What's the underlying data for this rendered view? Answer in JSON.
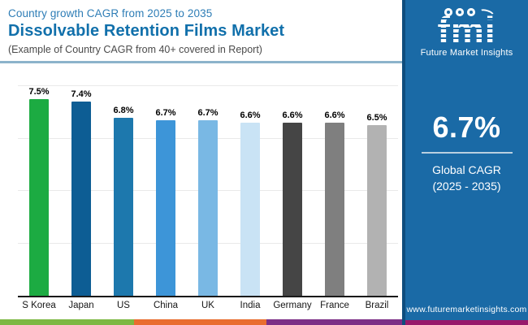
{
  "header": {
    "kicker": "Country growth CAGR from 2025 to 2035",
    "title": "Dissolvable Retention Films Market",
    "caption": "(Example of Country CAGR from 40+ covered in Report)"
  },
  "chart_data": {
    "type": "bar",
    "categories": [
      "S Korea",
      "Japan",
      "US",
      "China",
      "UK",
      "India",
      "Germany",
      "France",
      "Brazil"
    ],
    "values": [
      7.5,
      7.4,
      6.8,
      6.7,
      6.7,
      6.6,
      6.6,
      6.6,
      6.5
    ],
    "value_labels": [
      "7.5%",
      "7.4%",
      "6.8%",
      "6.7%",
      "6.7%",
      "6.6%",
      "6.6%",
      "6.6%",
      "6.5%"
    ],
    "bar_colors": [
      "#1cab42",
      "#0d5d94",
      "#1d78ad",
      "#3d95d8",
      "#79b8e4",
      "#c9e3f5",
      "#454545",
      "#7f7f7f",
      "#b2b2b2"
    ],
    "title": "Country growth CAGR from 2025 to 2035",
    "xlabel": "",
    "ylabel": "",
    "ylim": [
      0,
      8
    ],
    "gridline_values": [
      2,
      4,
      6,
      8
    ],
    "grid": "horizontal-light",
    "legend": "none"
  },
  "sidebar": {
    "logo": {
      "brand": "fmi",
      "brand_caption": "Future Market Insights"
    },
    "stat": {
      "value": "6.7%",
      "label_line1": "Global CAGR",
      "label_line2": "(2025 - 2035)"
    },
    "website": "www.futuremarketinsights.com",
    "colors": {
      "background": "#1a6aa6",
      "edge": "#0f4d7d",
      "bottom_strip": "#97196b"
    }
  },
  "footer": {
    "strip_colors": [
      "#7db843",
      "#e96d2f",
      "#7c2e86"
    ]
  },
  "colors": {
    "kicker_text": "#2e7db6",
    "title_text": "#1170ab",
    "caption_text": "#4a4a4a",
    "divider": "#8cb3cb",
    "axis": "#1a1a1a",
    "gridline": "#e9e9e9"
  }
}
